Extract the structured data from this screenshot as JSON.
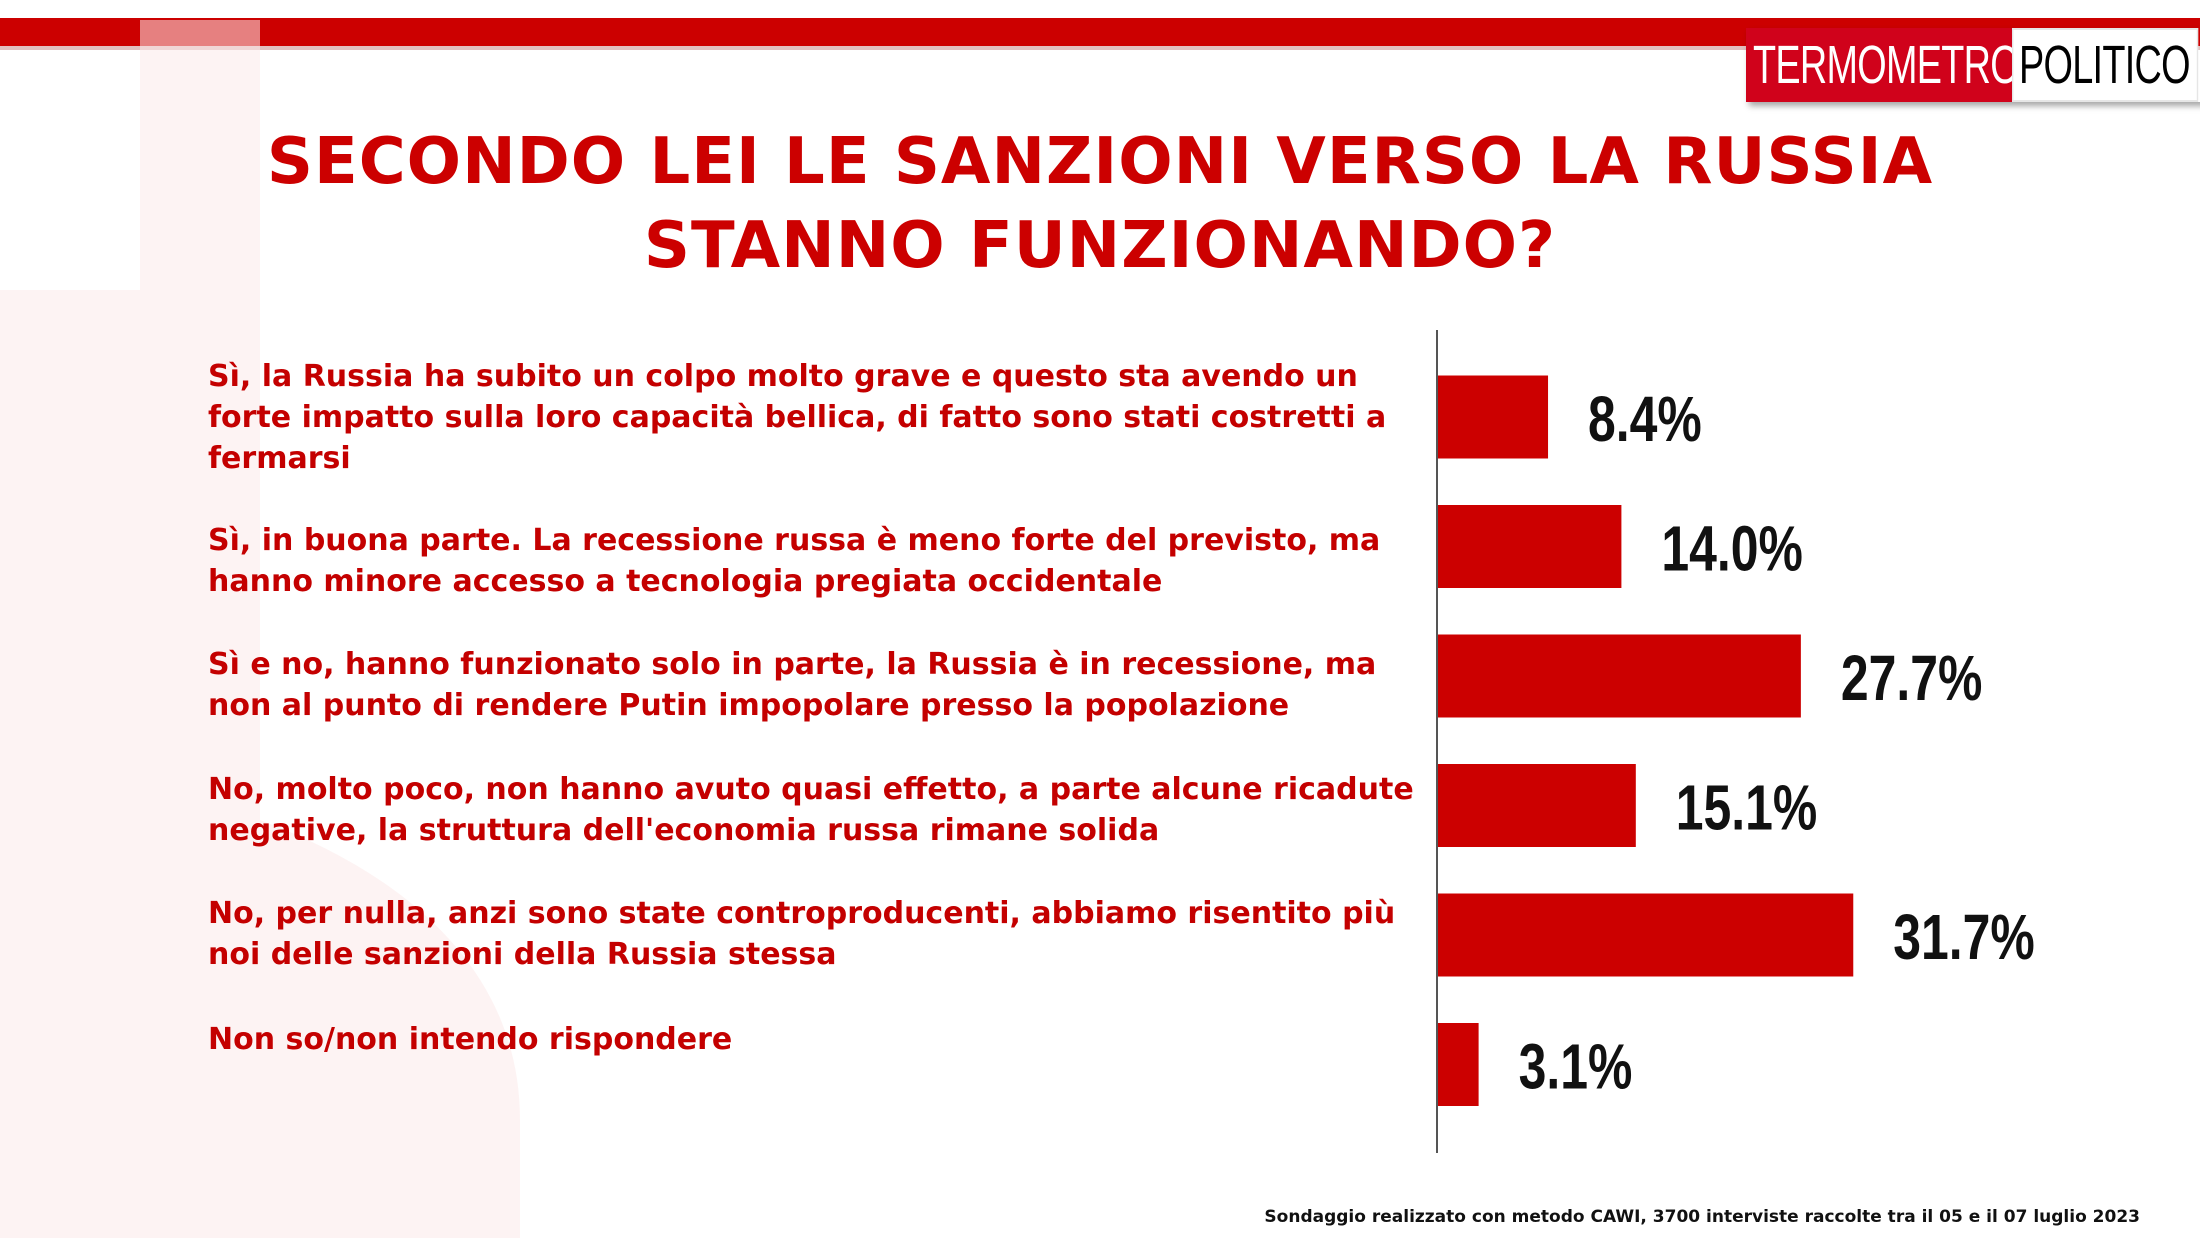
{
  "header": {
    "logo_part1": "TERMOMETRO",
    "logo_part2": "POLITICO"
  },
  "title_line1": "SECONDO LEI LE SANZIONI VERSO LA RUSSIA",
  "title_line2": "STANNO FUNZIONANDO?",
  "colors": {
    "accent": "#cc0000",
    "bar": "#cc0000",
    "value_text": "#111111"
  },
  "chart_data": {
    "type": "bar",
    "orientation": "horizontal",
    "categories": [
      "Sì, la Russia ha subito un colpo molto grave e questo sta avendo un forte impatto sulla loro capacità bellica, di fatto sono stati costretti a fermarsi",
      "Sì, in buona parte. La recessione russa è meno forte del previsto, ma hanno minore accesso a tecnologia pregiata occidentale",
      "Sì e no, hanno funzionato solo in parte, la Russia è in recessione, ma non al punto di rendere Putin impopolare presso la popolazione",
      "No, molto poco, non hanno avuto quasi effetto, a parte alcune ricadute negative, la struttura dell'economia russa rimane solida",
      "No, per nulla, anzi sono state controproducenti, abbiamo risentito più noi delle sanzioni della Russia stessa",
      "Non so/non intendo rispondere"
    ],
    "values": [
      8.4,
      14.0,
      27.7,
      15.1,
      31.7,
      3.1
    ],
    "value_labels": [
      "8.4%",
      "14.0%",
      "27.7%",
      "15.1%",
      "31.7%",
      "3.1%"
    ],
    "title": "SECONDO LEI LE SANZIONI VERSO LA RUSSIA STANNO FUNZIONANDO?",
    "xlabel": "",
    "ylabel": "",
    "grid": false,
    "legend": "none"
  },
  "footer": "Sondaggio realizzato con metodo CAWI, 3700 interviste raccolte tra il 05 e il 07 luglio 2023"
}
